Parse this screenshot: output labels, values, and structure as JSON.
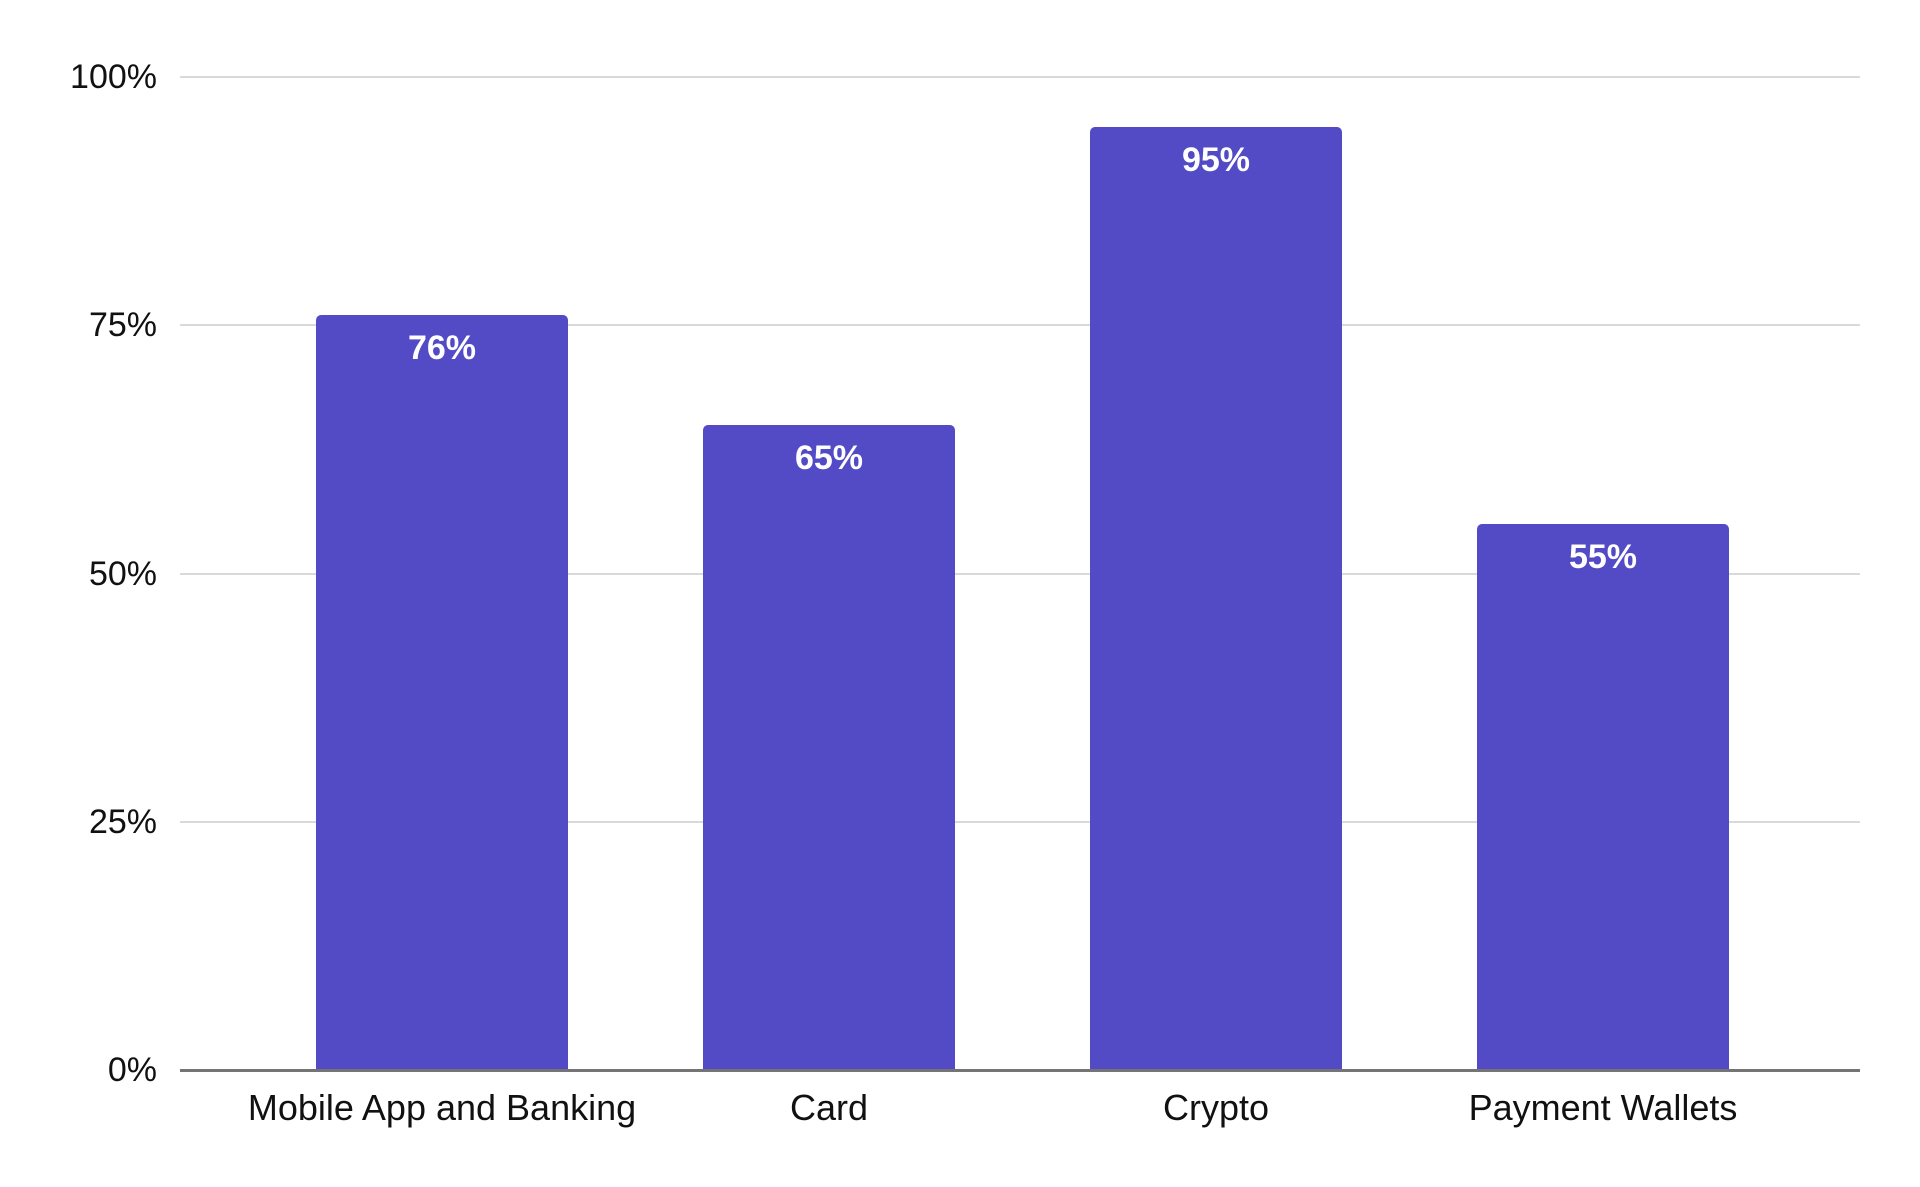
{
  "chart_data": {
    "type": "bar",
    "title": "",
    "xlabel": "",
    "ylabel": "",
    "categories": [
      "Mobile App and Banking",
      "Card",
      "Crypto",
      "Payment Wallets"
    ],
    "values": [
      76,
      65,
      95,
      55
    ],
    "value_labels": [
      "76%",
      "65%",
      "95%",
      "55%"
    ],
    "y_ticks": [
      {
        "value": 0,
        "label": "0%"
      },
      {
        "value": 25,
        "label": "25%"
      },
      {
        "value": 50,
        "label": "50%"
      },
      {
        "value": 75,
        "label": "75%"
      },
      {
        "value": 100,
        "label": "100%"
      }
    ],
    "ylim": [
      0,
      100
    ],
    "grid": true,
    "legend_position": "none",
    "colors": {
      "bar": "#524bc5",
      "value_label": "#ffffff",
      "axis_text": "#111111",
      "gridline": "#d9d9d9",
      "baseline": "#747474",
      "background": "#ffffff"
    }
  }
}
